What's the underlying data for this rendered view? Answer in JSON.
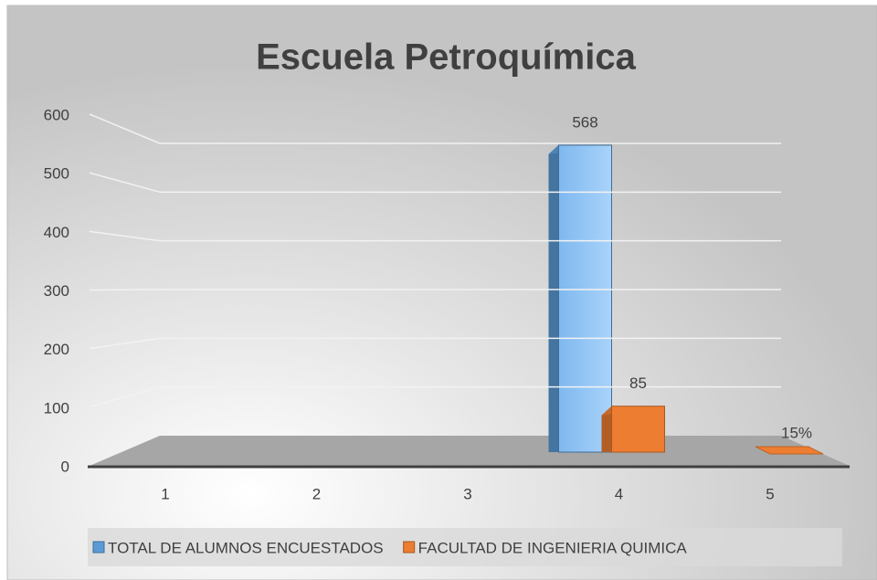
{
  "chart_data": {
    "type": "bar3d",
    "title": "Escuela Petroquímica",
    "categories": [
      "1",
      "2",
      "3",
      "4",
      "5"
    ],
    "series": [
      {
        "name": "TOTAL DE ALUMNOS ENCUESTADOS",
        "color": "#5b9bd5",
        "values": [
          null,
          null,
          null,
          568,
          null
        ]
      },
      {
        "name": "FACULTAD DE INGENIERIA QUIMICA",
        "color": "#ed7d31",
        "values": [
          null,
          null,
          null,
          85,
          0.15
        ],
        "value_labels": [
          null,
          null,
          null,
          "85",
          "15%"
        ]
      }
    ],
    "ylim": [
      0,
      600
    ],
    "yticks": [
      0,
      100,
      200,
      300,
      400,
      500,
      600
    ],
    "grid": true,
    "legend": "bottom"
  }
}
